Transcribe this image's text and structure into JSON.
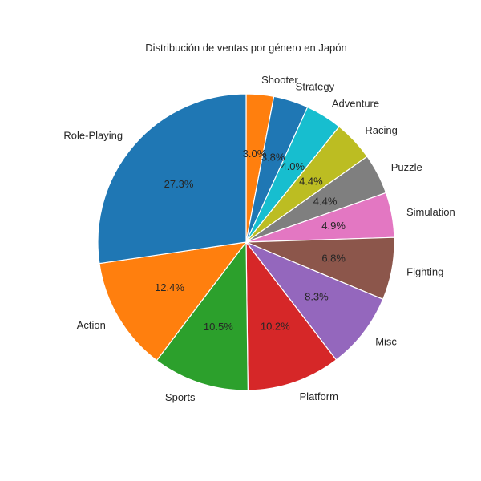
{
  "chart_data": {
    "type": "pie",
    "title": "Distribución de ventas por género en Japón",
    "start_angle_deg": 90,
    "direction": "clockwise",
    "slices": [
      {
        "label": "Shooter",
        "value": 3.0,
        "pct_label": "3.0%",
        "color": "#ff7f0e"
      },
      {
        "label": "Strategy",
        "value": 3.8,
        "pct_label": "3.8%",
        "color": "#1f77b4"
      },
      {
        "label": "Adventure",
        "value": 4.0,
        "pct_label": "4.0%",
        "color": "#17becf"
      },
      {
        "label": "Racing",
        "value": 4.4,
        "pct_label": "4.4%",
        "color": "#bcbd22"
      },
      {
        "label": "Puzzle",
        "value": 4.4,
        "pct_label": "4.4%",
        "color": "#7f7f7f"
      },
      {
        "label": "Simulation",
        "value": 4.9,
        "pct_label": "4.9%",
        "color": "#e377c2"
      },
      {
        "label": "Fighting",
        "value": 6.8,
        "pct_label": "6.8%",
        "color": "#8c564b"
      },
      {
        "label": "Misc",
        "value": 8.3,
        "pct_label": "8.3%",
        "color": "#9467bd"
      },
      {
        "label": "Platform",
        "value": 10.2,
        "pct_label": "10.2%",
        "color": "#d62728"
      },
      {
        "label": "Sports",
        "value": 10.5,
        "pct_label": "10.5%",
        "color": "#2ca02c"
      },
      {
        "label": "Action",
        "value": 12.4,
        "pct_label": "12.4%",
        "color": "#ff7f0e"
      },
      {
        "label": "Role-Playing",
        "value": 27.3,
        "pct_label": "27.3%",
        "color": "#1f77b4"
      }
    ]
  }
}
